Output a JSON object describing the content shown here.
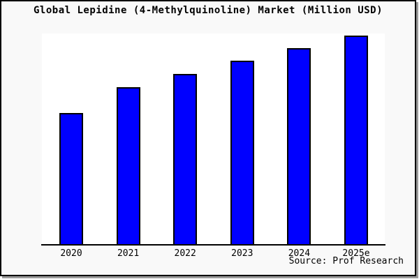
{
  "page": {
    "background": "#f9f9f9",
    "frame_border_color": "#000000",
    "shadow_color": "#9a9a9a"
  },
  "chart_data": {
    "type": "bar",
    "title": "Global Lepidine (4-Methylquinoline) Market (Million USD)",
    "categories": [
      "2020",
      "2021",
      "2022",
      "2023",
      "2024",
      "2025e"
    ],
    "values": [
      188,
      225,
      244,
      263,
      281,
      299
    ],
    "value_note": "y-axis unlabeled in image; values are relative bar heights in pixels",
    "xlabel": "",
    "ylabel": "",
    "grid": false,
    "legend": false,
    "bar_color": "#0000ff",
    "bar_border_color": "#000000",
    "plot_background": "#ffffff"
  },
  "footer": {
    "source_note": "Source: Prof Research"
  }
}
